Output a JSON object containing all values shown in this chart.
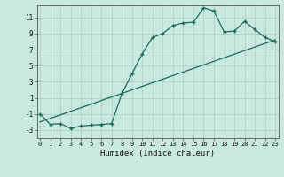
{
  "title": "",
  "xlabel": "Humidex (Indice chaleur)",
  "ylabel": "",
  "background_color": "#c8e8e0",
  "grid_color": "#b0d0c8",
  "line_color": "#1a6b5a",
  "x_ticks": [
    0,
    1,
    2,
    3,
    4,
    5,
    6,
    7,
    8,
    9,
    10,
    11,
    12,
    13,
    14,
    15,
    16,
    17,
    18,
    19,
    20,
    21,
    22,
    23
  ],
  "y_ticks": [
    -3,
    -1,
    1,
    3,
    5,
    7,
    9,
    11
  ],
  "ylim": [
    -4.0,
    12.5
  ],
  "xlim": [
    -0.3,
    23.3
  ],
  "curve_x": [
    0,
    1,
    2,
    3,
    4,
    5,
    6,
    7,
    8,
    9,
    10,
    11,
    12,
    13,
    14,
    15,
    16,
    17,
    18,
    19,
    20,
    21,
    22,
    23
  ],
  "curve_y": [
    -1.0,
    -2.3,
    -2.2,
    -2.8,
    -2.5,
    -2.4,
    -2.3,
    -2.2,
    1.5,
    4.0,
    6.5,
    8.5,
    9.0,
    10.0,
    10.3,
    10.4,
    12.2,
    11.8,
    9.2,
    9.3,
    10.5,
    9.5,
    8.5,
    8.0
  ],
  "line_x": [
    0,
    23
  ],
  "line_y": [
    -2.0,
    8.2
  ],
  "linewidth": 0.9,
  "markersize": 3.5
}
